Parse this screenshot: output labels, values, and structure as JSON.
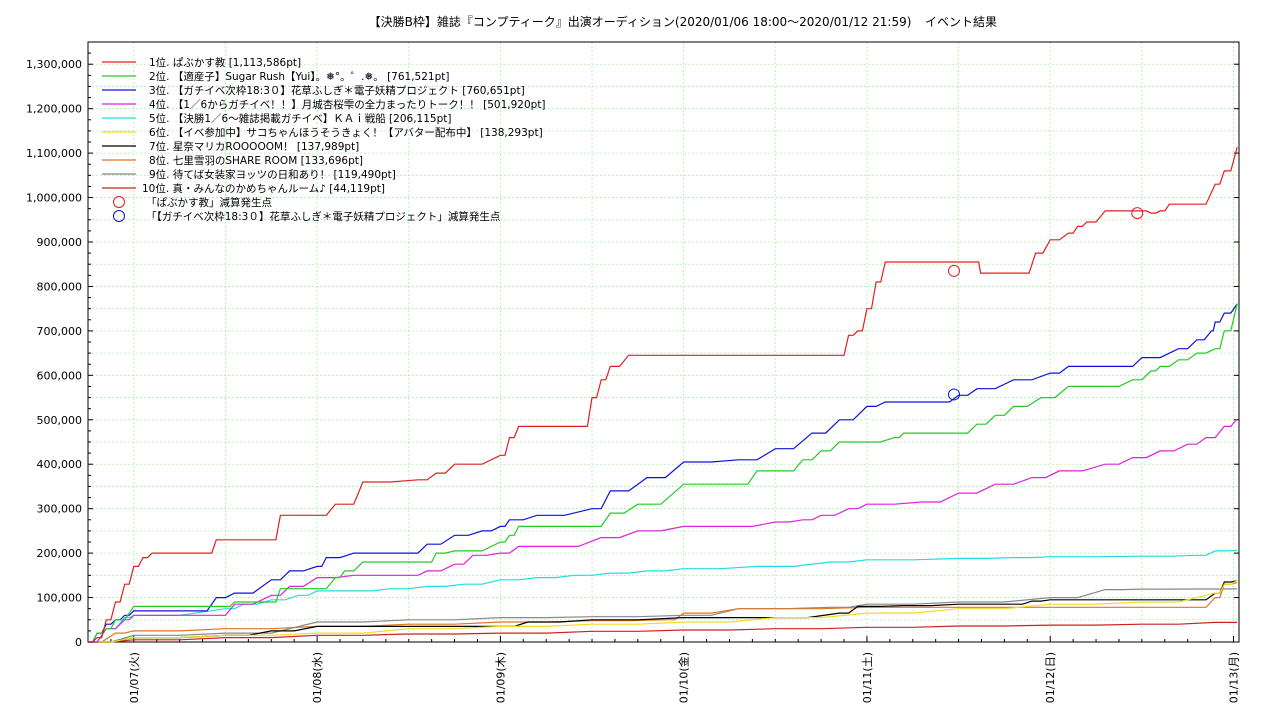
{
  "chart_data": {
    "type": "line",
    "title": "【決勝B枠】雑誌『コンプティーク』出演オーディション(2020/01/06 18:00〜2020/01/12 21:59)",
    "subtitle": "イベント結果",
    "xlabel": "",
    "ylabel": "",
    "x_unit": "days since 2020/01/06 00:00",
    "xlim": [
      0.75,
      7.03
    ],
    "ylim": [
      0,
      1350000
    ],
    "y_ticks": [
      0,
      100000,
      200000,
      300000,
      400000,
      500000,
      600000,
      700000,
      800000,
      900000,
      1000000,
      1100000,
      1200000,
      1300000
    ],
    "y_tick_labels": [
      "0",
      "100,000",
      "200,000",
      "300,000",
      "400,000",
      "500,000",
      "600,000",
      "700,000",
      "800,000",
      "900,000",
      "1,000,000",
      "1,100,000",
      "1,200,000",
      "1,300,000"
    ],
    "x_ticks": [
      1,
      2,
      3,
      4,
      5,
      6,
      7
    ],
    "x_tick_labels": [
      "01/07(火)",
      "01/08(水)",
      "01/09(木)",
      "01/10(金)",
      "01/11(土)",
      "01/12(日)",
      "01/13(月)"
    ],
    "grid": true,
    "legend_position": "top-left",
    "series": [
      {
        "name": "1位. ぱぶかす教 [1,113,586pt]",
        "color": "#e02020",
        "x": [
          0.75,
          0.8,
          0.85,
          0.9,
          0.95,
          1.0,
          1.05,
          1.1,
          1.4,
          1.45,
          1.75,
          1.8,
          2.0,
          2.1,
          2.15,
          2.25,
          2.55,
          2.65,
          2.75,
          2.8,
          3.0,
          3.05,
          3.1,
          3.45,
          3.5,
          3.55,
          3.6,
          3.7,
          4.0,
          4.15,
          4.85,
          4.9,
          4.95,
          5.0,
          5.05,
          5.1,
          5.6,
          5.62,
          5.85,
          5.92,
          6.0,
          6.1,
          6.15,
          6.2,
          6.3,
          6.45,
          6.5,
          6.55,
          6.6,
          6.65,
          6.8,
          6.9,
          6.95,
          7.02
        ],
        "values": [
          0,
          10000,
          50000,
          90000,
          130000,
          170000,
          190000,
          200000,
          200000,
          230000,
          230000,
          285000,
          285000,
          310000,
          310000,
          360000,
          365000,
          380000,
          400000,
          400000,
          420000,
          460000,
          485000,
          485000,
          550000,
          590000,
          620000,
          645000,
          645000,
          645000,
          645000,
          690000,
          700000,
          750000,
          810000,
          855000,
          855000,
          830000,
          830000,
          875000,
          905000,
          920000,
          935000,
          945000,
          970000,
          970000,
          970000,
          965000,
          970000,
          985000,
          985000,
          1030000,
          1060000,
          1113586
        ]
      },
      {
        "name": "2位. 【適産子】Sugar Rush【Yui】。❅°。゜.❅。 [761,521pt]",
        "color": "#22cc22",
        "x": [
          0.75,
          0.8,
          0.85,
          0.9,
          1.0,
          1.5,
          1.55,
          1.75,
          1.8,
          2.0,
          2.1,
          2.15,
          2.25,
          2.6,
          2.65,
          2.75,
          2.8,
          3.0,
          3.05,
          3.1,
          3.2,
          3.5,
          3.6,
          3.75,
          4.0,
          4.3,
          4.4,
          4.55,
          4.65,
          4.75,
          4.85,
          5.0,
          5.15,
          5.2,
          5.5,
          5.6,
          5.7,
          5.8,
          5.95,
          6.1,
          6.3,
          6.45,
          6.55,
          6.6,
          6.7,
          6.8,
          6.9,
          6.95,
          7.02
        ],
        "values": [
          0,
          20000,
          30000,
          50000,
          80000,
          80000,
          90000,
          90000,
          120000,
          120000,
          145000,
          160000,
          180000,
          180000,
          200000,
          205000,
          205000,
          225000,
          240000,
          260000,
          260000,
          260000,
          290000,
          310000,
          355000,
          355000,
          385000,
          385000,
          410000,
          430000,
          450000,
          450000,
          460000,
          470000,
          470000,
          490000,
          510000,
          530000,
          550000,
          575000,
          575000,
          590000,
          610000,
          620000,
          635000,
          650000,
          660000,
          700000,
          761521
        ]
      },
      {
        "name": "3位. 【ガチイベ次枠18:3０】花草ふしぎ＊電子妖精プロジェクト [760,651pt]",
        "color": "#1010dd",
        "x": [
          0.75,
          0.8,
          0.85,
          0.9,
          0.95,
          1.0,
          1.35,
          1.45,
          1.55,
          1.75,
          1.85,
          2.0,
          2.05,
          2.2,
          2.5,
          2.6,
          2.75,
          2.9,
          3.0,
          3.05,
          3.2,
          3.5,
          3.6,
          3.8,
          4.0,
          4.3,
          4.5,
          4.7,
          4.85,
          5.0,
          5.1,
          5.4,
          5.5,
          5.6,
          5.8,
          6.0,
          6.1,
          6.4,
          6.5,
          6.7,
          6.8,
          6.88,
          6.9,
          6.95,
          7.02
        ],
        "values": [
          0,
          20000,
          40000,
          50000,
          60000,
          70000,
          70000,
          100000,
          110000,
          140000,
          160000,
          170000,
          190000,
          200000,
          200000,
          220000,
          240000,
          250000,
          260000,
          275000,
          285000,
          300000,
          340000,
          370000,
          405000,
          410000,
          435000,
          470000,
          500000,
          530000,
          540000,
          540000,
          555000,
          570000,
          590000,
          605000,
          620000,
          620000,
          640000,
          660000,
          680000,
          700000,
          720000,
          740000,
          760651
        ]
      },
      {
        "name": "4位. 【1／6からガチイベ！！】月城杏桜雫の全力まったりトーク！！ [501,920pt]",
        "color": "#dd22dd",
        "x": [
          0.75,
          0.85,
          0.95,
          1.0,
          1.45,
          1.55,
          1.75,
          1.85,
          2.0,
          2.2,
          2.5,
          2.6,
          2.75,
          2.85,
          3.0,
          3.1,
          3.3,
          3.55,
          3.75,
          4.0,
          4.25,
          4.5,
          4.65,
          4.75,
          4.9,
          5.0,
          5.3,
          5.5,
          5.7,
          5.9,
          6.05,
          6.3,
          6.45,
          6.6,
          6.75,
          6.85,
          6.95,
          7.02
        ],
        "values": [
          0,
          30000,
          50000,
          60000,
          60000,
          85000,
          105000,
          125000,
          145000,
          150000,
          150000,
          160000,
          175000,
          195000,
          200000,
          215000,
          215000,
          235000,
          250000,
          260000,
          260000,
          270000,
          275000,
          285000,
          300000,
          310000,
          315000,
          335000,
          355000,
          370000,
          385000,
          400000,
          415000,
          430000,
          445000,
          460000,
          485000,
          501920
        ]
      },
      {
        "name": "5位. 【決勝1／6〜雑誌掲載ガチイベ】ＫＡｉ戦船 [206,115pt]",
        "color": "#22dddd",
        "x": [
          0.75,
          0.85,
          0.95,
          1.0,
          1.5,
          1.6,
          1.75,
          1.9,
          2.0,
          2.2,
          2.4,
          2.6,
          2.8,
          3.0,
          3.2,
          3.4,
          3.6,
          3.8,
          4.0,
          4.4,
          4.8,
          5.0,
          5.5,
          5.8,
          6.0,
          6.5,
          6.8,
          6.9,
          7.02
        ],
        "values": [
          0,
          30000,
          55000,
          60000,
          75000,
          85000,
          95000,
          105000,
          115000,
          115000,
          120000,
          125000,
          130000,
          140000,
          145000,
          150000,
          155000,
          160000,
          165000,
          170000,
          180000,
          185000,
          188000,
          190000,
          192000,
          193000,
          195000,
          205000,
          206115
        ]
      },
      {
        "name": "6位. 【イベ参加中】サコちゃんほうそうきょく！【アバター配布中】 [138,293pt]",
        "color": "#eedd22",
        "x": [
          0.75,
          1.0,
          1.5,
          2.0,
          2.5,
          3.0,
          3.5,
          4.0,
          4.5,
          5.0,
          5.5,
          6.0,
          6.5,
          6.9,
          6.95,
          7.02
        ],
        "values": [
          0,
          10000,
          15000,
          20000,
          30000,
          35000,
          40000,
          45000,
          55000,
          65000,
          75000,
          85000,
          90000,
          110000,
          130000,
          138293
        ]
      },
      {
        "name": "7位. 星奈マリカROOOOOM！ [137,989pt]",
        "color": "#000000",
        "x": [
          0.75,
          1.0,
          1.5,
          1.75,
          2.0,
          2.5,
          3.0,
          3.15,
          3.5,
          4.0,
          4.5,
          4.85,
          4.95,
          5.2,
          5.5,
          5.8,
          5.9,
          6.0,
          6.3,
          6.8,
          6.9,
          6.95,
          7.02
        ],
        "values": [
          0,
          10000,
          15000,
          25000,
          35000,
          35000,
          35000,
          45000,
          50000,
          55000,
          55000,
          65000,
          80000,
          82000,
          85000,
          85000,
          92000,
          95000,
          95000,
          95000,
          110000,
          135000,
          137989
        ]
      },
      {
        "name": "8位. 七里雪羽のSHARE ROOM [133,696pt]",
        "color": "#dd7722",
        "x": [
          0.75,
          0.9,
          1.0,
          1.5,
          2.0,
          2.5,
          3.0,
          3.5,
          3.9,
          4.0,
          4.3,
          4.5,
          5.0,
          5.5,
          6.0,
          6.5,
          6.8,
          6.9,
          6.95,
          7.02
        ],
        "values": [
          0,
          20000,
          25000,
          30000,
          35000,
          40000,
          45000,
          48000,
          50000,
          65000,
          75000,
          75000,
          78000,
          78000,
          78000,
          78000,
          78000,
          100000,
          130000,
          133696
        ]
      },
      {
        "name": "9位. 待てば女装家ヨッツの日和あり！ [119,490pt]",
        "color": "#888888",
        "x": [
          0.75,
          1.0,
          1.5,
          2.0,
          2.5,
          3.0,
          3.5,
          4.0,
          4.3,
          4.8,
          5.0,
          5.5,
          6.0,
          6.3,
          6.5,
          6.8,
          7.02
        ],
        "values": [
          0,
          15000,
          20000,
          45000,
          50000,
          55000,
          57000,
          60000,
          75000,
          78000,
          85000,
          90000,
          100000,
          118000,
          119000,
          119300,
          119490
        ]
      },
      {
        "name": "10位. 真・みんなのかめちゃんルーム♪ [44,119pt]",
        "color": "#cc2222",
        "x": [
          0.75,
          1.0,
          1.5,
          2.0,
          2.5,
          3.0,
          3.5,
          4.0,
          4.5,
          5.0,
          5.5,
          6.0,
          6.5,
          6.9,
          7.02
        ],
        "values": [
          0,
          5000,
          10000,
          15000,
          18000,
          20000,
          24000,
          27000,
          30000,
          33000,
          36000,
          38000,
          40000,
          44000,
          44119
        ]
      }
    ],
    "markers": [
      {
        "name": "「ぱぶかす教」減算発生点",
        "color": "#e02020",
        "points": [
          {
            "x": 5.475,
            "y": 835000
          },
          {
            "x": 6.475,
            "y": 965000
          }
        ]
      },
      {
        "name": "「【ガチイベ次枠18:3０】花草ふしぎ＊電子妖精プロジェクト」減算発生点",
        "color": "#1010dd",
        "points": [
          {
            "x": 5.475,
            "y": 557000
          }
        ]
      }
    ]
  }
}
